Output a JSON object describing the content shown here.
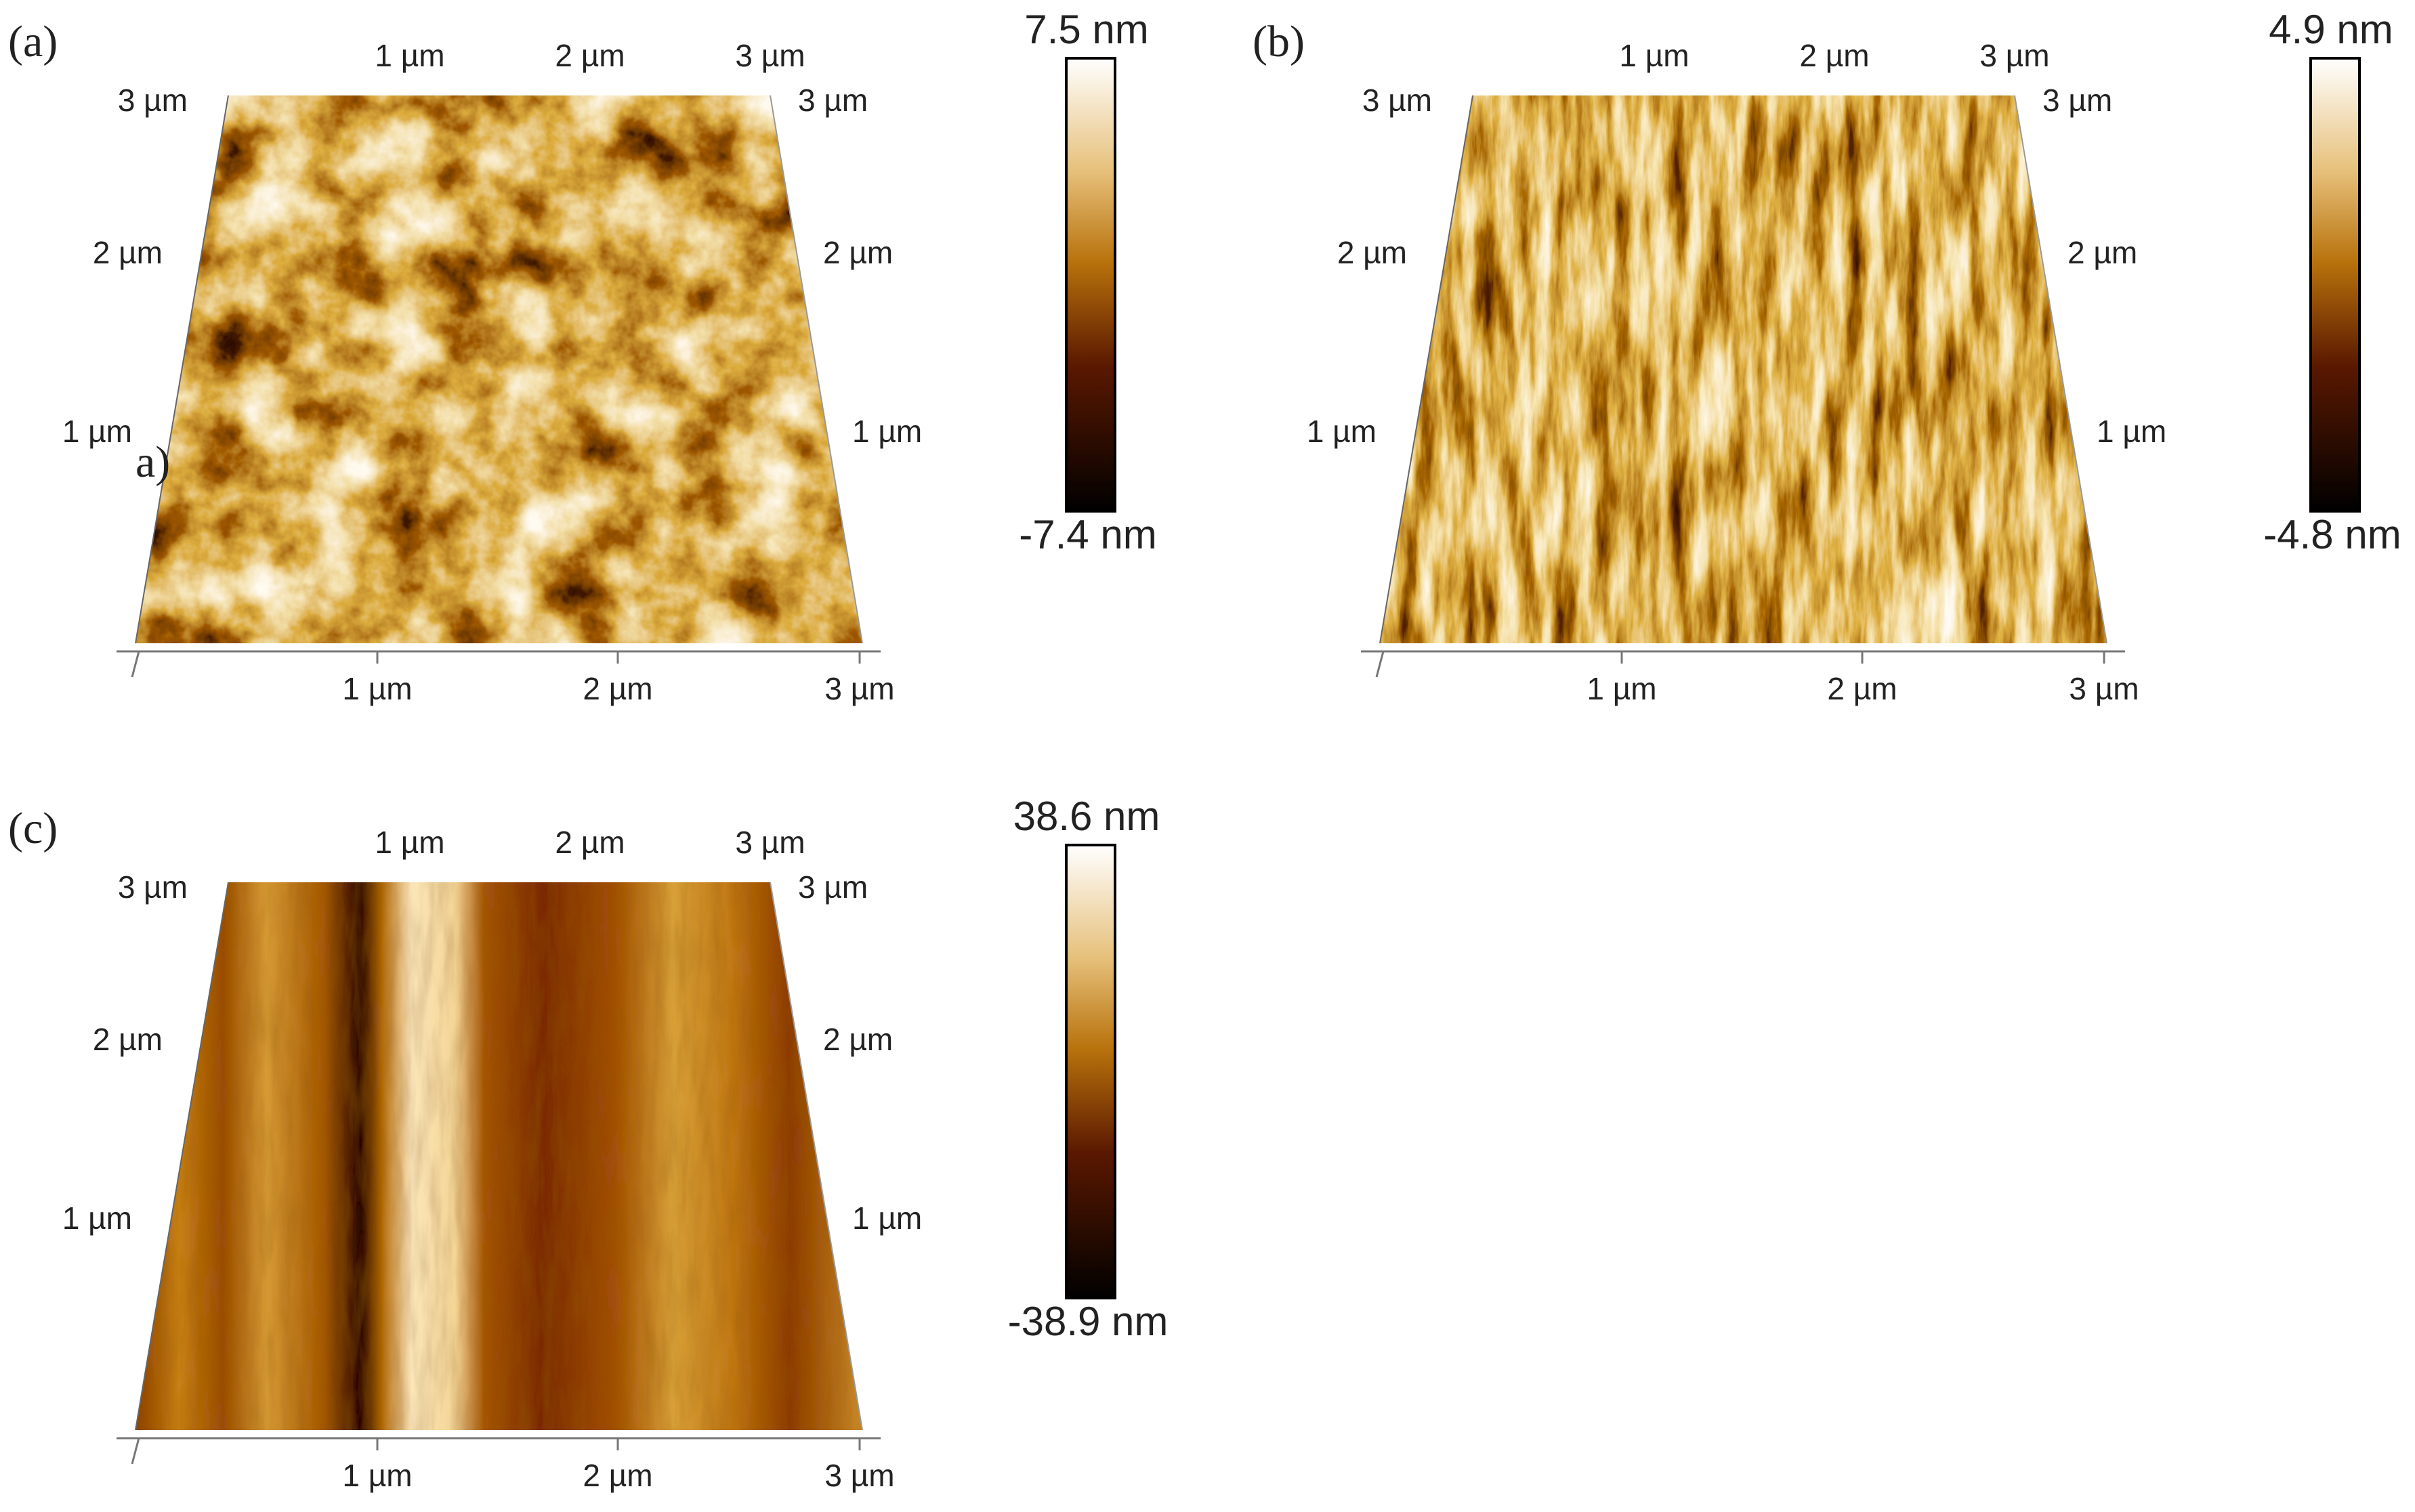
{
  "panels": [
    {
      "label": "(a)",
      "top_axis": [
        "1 µm",
        "2 µm",
        "3 µm"
      ],
      "left_axis": [
        "3 µm",
        "2 µm",
        "1 µm"
      ],
      "right_axis": [
        "3 µm",
        "2 µm",
        "1 µm"
      ],
      "bottom_axis": [
        "1 µm",
        "2 µm",
        "3 µm"
      ],
      "colorbar": {
        "max": "7.5 nm",
        "min": "-7.4 nm"
      },
      "annotation": "a)"
    },
    {
      "label": "(b)",
      "top_axis": [
        "1 µm",
        "2 µm",
        "3 µm"
      ],
      "left_axis": [
        "3 µm",
        "2 µm",
        "1 µm"
      ],
      "right_axis": [
        "3 µm",
        "2 µm",
        "1 µm"
      ],
      "bottom_axis": [
        "1 µm",
        "2 µm",
        "3 µm"
      ],
      "colorbar": {
        "max": "4.9 nm",
        "min": "-4.8 nm"
      }
    },
    {
      "label": "(c)",
      "top_axis": [
        "1 µm",
        "2 µm",
        "3 µm"
      ],
      "left_axis": [
        "3 µm",
        "2 µm",
        "1 µm"
      ],
      "right_axis": [
        "3 µm",
        "2 µm",
        "1 µm"
      ],
      "bottom_axis": [
        "1 µm",
        "2 µm",
        "3 µm"
      ],
      "colorbar": {
        "max": "38.6 nm",
        "min": "-38.9 nm"
      }
    }
  ]
}
